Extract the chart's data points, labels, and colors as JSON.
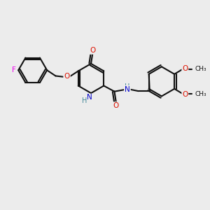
{
  "bg_color": "#ececec",
  "bond_color": "#111111",
  "bond_width": 1.5,
  "atom_colors": {
    "F": "#ee00ee",
    "O": "#dd1100",
    "N": "#0000cc",
    "H_N": "#448899",
    "C": "#111111"
  },
  "font_size_atom": 7.5,
  "font_size_small": 6.5,
  "xlim": [
    0,
    10
  ],
  "ylim": [
    0,
    8
  ]
}
